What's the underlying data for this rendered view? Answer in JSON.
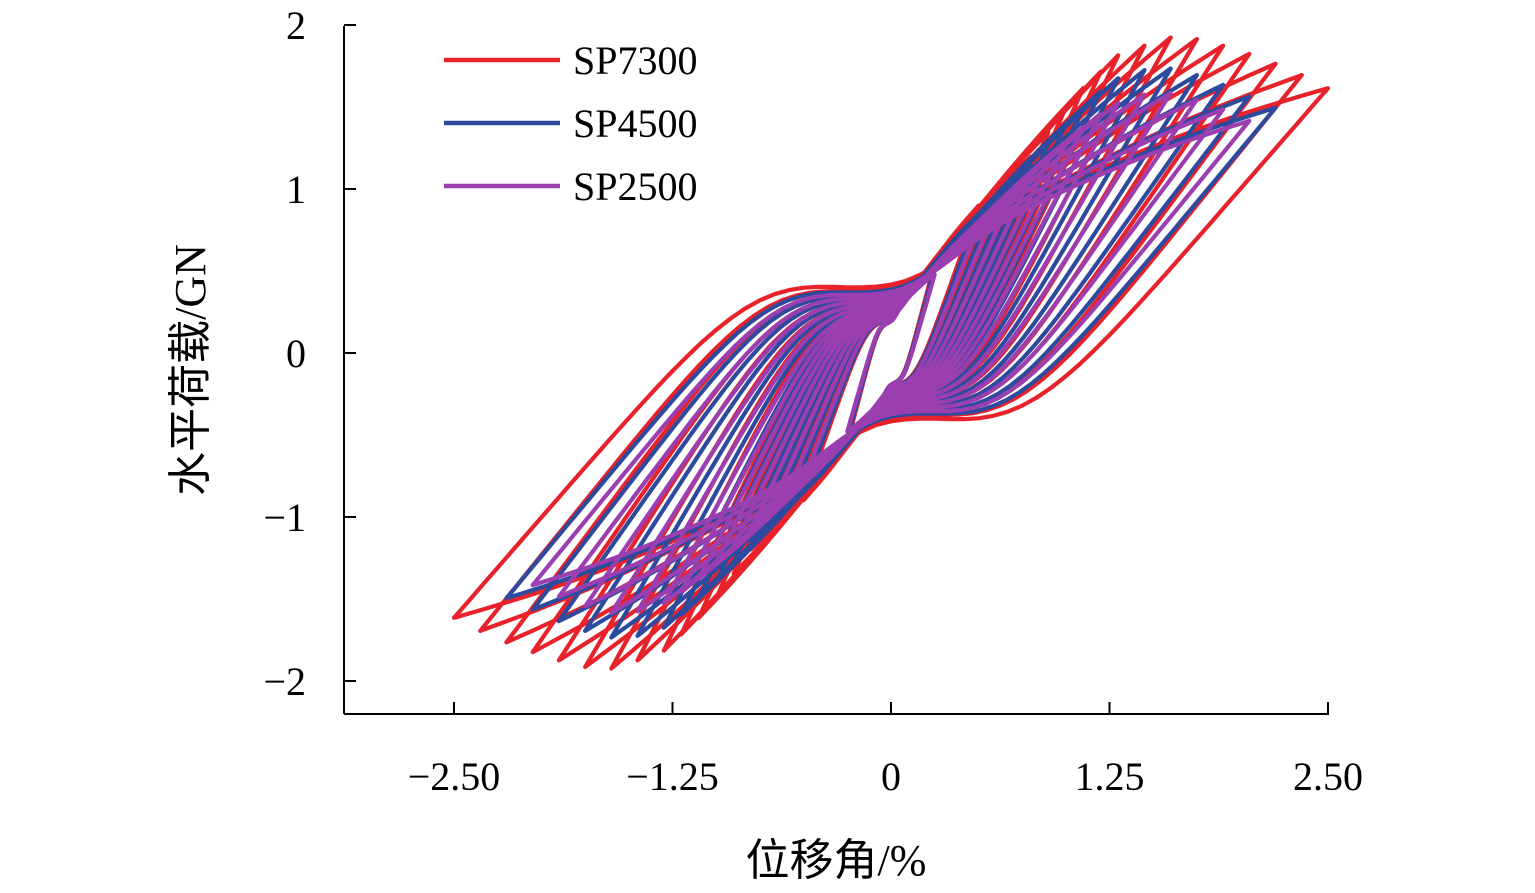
{
  "chart_data": {
    "type": "line",
    "subtype": "hysteresis",
    "title": "",
    "xlabel": "位移角/%",
    "ylabel": "水平荷载/GN",
    "xlim": [
      -3.0,
      2.5
    ],
    "ylim": [
      -2.2,
      2.0
    ],
    "xticks": [
      -2.5,
      -1.25,
      0,
      1.25,
      2.5
    ],
    "xtick_labels": [
      "−2.50",
      "−1.25",
      "0",
      "1.25",
      "2.50"
    ],
    "yticks": [
      -2,
      -1,
      0,
      1,
      2
    ],
    "ytick_labels": [
      "−2",
      "−1",
      "0",
      "1",
      "2"
    ],
    "grid": false,
    "legend_position": "top-left",
    "series": [
      {
        "name": "SP7300",
        "color": "#e8222a",
        "drift_amplitudes": [
          0.25,
          0.5,
          0.6,
          0.7,
          0.8,
          0.9,
          1.0,
          1.1,
          1.2,
          1.3,
          1.45,
          1.6,
          1.75,
          1.9,
          2.05,
          2.2,
          2.35,
          2.5
        ],
        "peak_loads": [
          0.55,
          0.9,
          1.0,
          1.1,
          1.2,
          1.35,
          1.5,
          1.62,
          1.72,
          1.82,
          1.88,
          1.93,
          1.92,
          1.88,
          1.83,
          1.77,
          1.7,
          1.62
        ]
      },
      {
        "name": "SP4500",
        "color": "#2e4a9e",
        "drift_amplitudes": [
          0.25,
          0.5,
          0.6,
          0.7,
          0.8,
          0.9,
          1.0,
          1.1,
          1.2,
          1.3,
          1.45,
          1.6,
          1.75,
          1.9,
          2.05,
          2.2
        ],
        "peak_loads": [
          0.52,
          0.85,
          0.95,
          1.05,
          1.15,
          1.28,
          1.4,
          1.5,
          1.6,
          1.68,
          1.73,
          1.74,
          1.7,
          1.64,
          1.57,
          1.5
        ]
      },
      {
        "name": "SP2500",
        "color": "#9b3fb0",
        "drift_amplitudes": [
          0.25,
          0.5,
          0.6,
          0.7,
          0.8,
          0.9,
          1.0,
          1.1,
          1.2,
          1.3,
          1.45,
          1.6,
          1.75,
          1.9,
          2.05
        ],
        "peak_loads": [
          0.48,
          0.78,
          0.88,
          0.98,
          1.08,
          1.18,
          1.28,
          1.38,
          1.46,
          1.53,
          1.58,
          1.59,
          1.55,
          1.49,
          1.42
        ]
      }
    ]
  }
}
